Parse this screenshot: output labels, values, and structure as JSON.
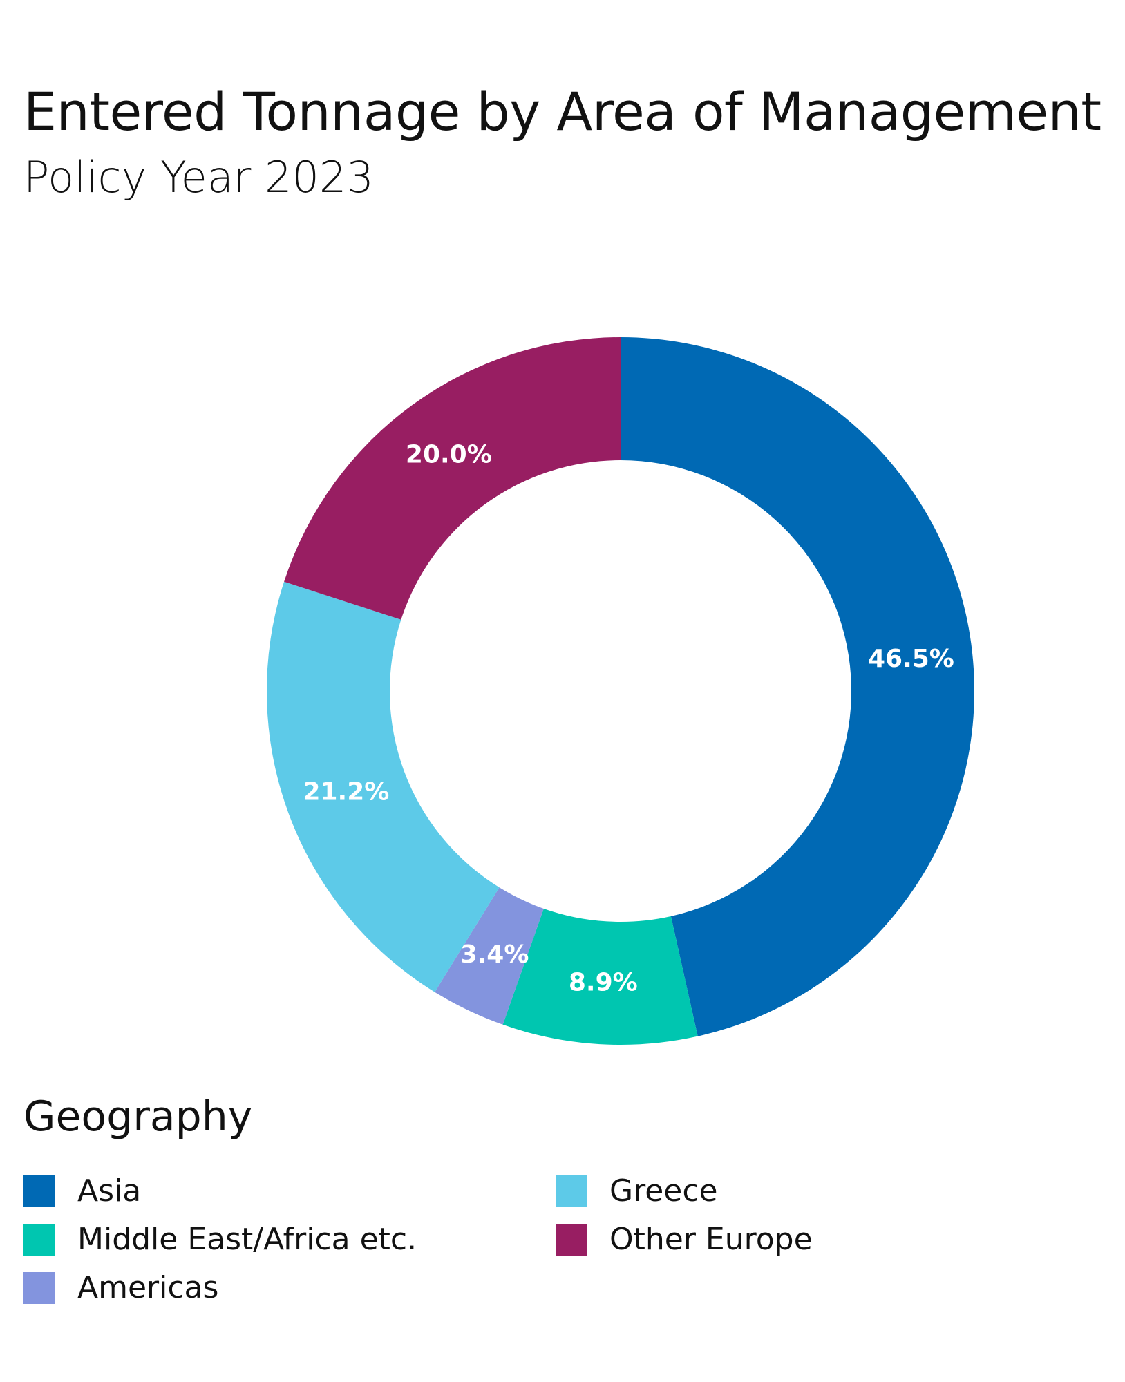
{
  "title": "Entered Tonnage by Area of Management",
  "subtitle": "Policy Year 2023",
  "legend_title": "Geography",
  "colors": {
    "Asia": "#0069b4",
    "Middle East/Africa etc.": "#00c6b0",
    "Americas": "#8394de",
    "Greece": "#5dcae8",
    "Other Europe": "#981e62"
  },
  "chart_data": {
    "type": "pie",
    "variant": "donut",
    "title": "Entered Tonnage by Area of Management",
    "subtitle": "Policy Year 2023",
    "start_angle": "12 o'clock, clockwise",
    "legend_title": "Geography",
    "legend_position": "bottom-left",
    "categories": [
      "Asia",
      "Middle East/Africa etc.",
      "Americas",
      "Greece",
      "Other Europe"
    ],
    "values": [
      46.5,
      8.9,
      3.4,
      21.2,
      20.0
    ],
    "data_labels": [
      "46.5%",
      "8.9%",
      "3.4%",
      "21.2%",
      "20.0%"
    ],
    "legend": [
      {
        "label": "Asia",
        "color": "#0069b4"
      },
      {
        "label": "Greece",
        "color": "#5dcae8"
      },
      {
        "label": "Middle East/Africa etc.",
        "color": "#00c6b0"
      },
      {
        "label": "Other Europe",
        "color": "#981e62"
      },
      {
        "label": "Americas",
        "color": "#8394de"
      }
    ]
  }
}
